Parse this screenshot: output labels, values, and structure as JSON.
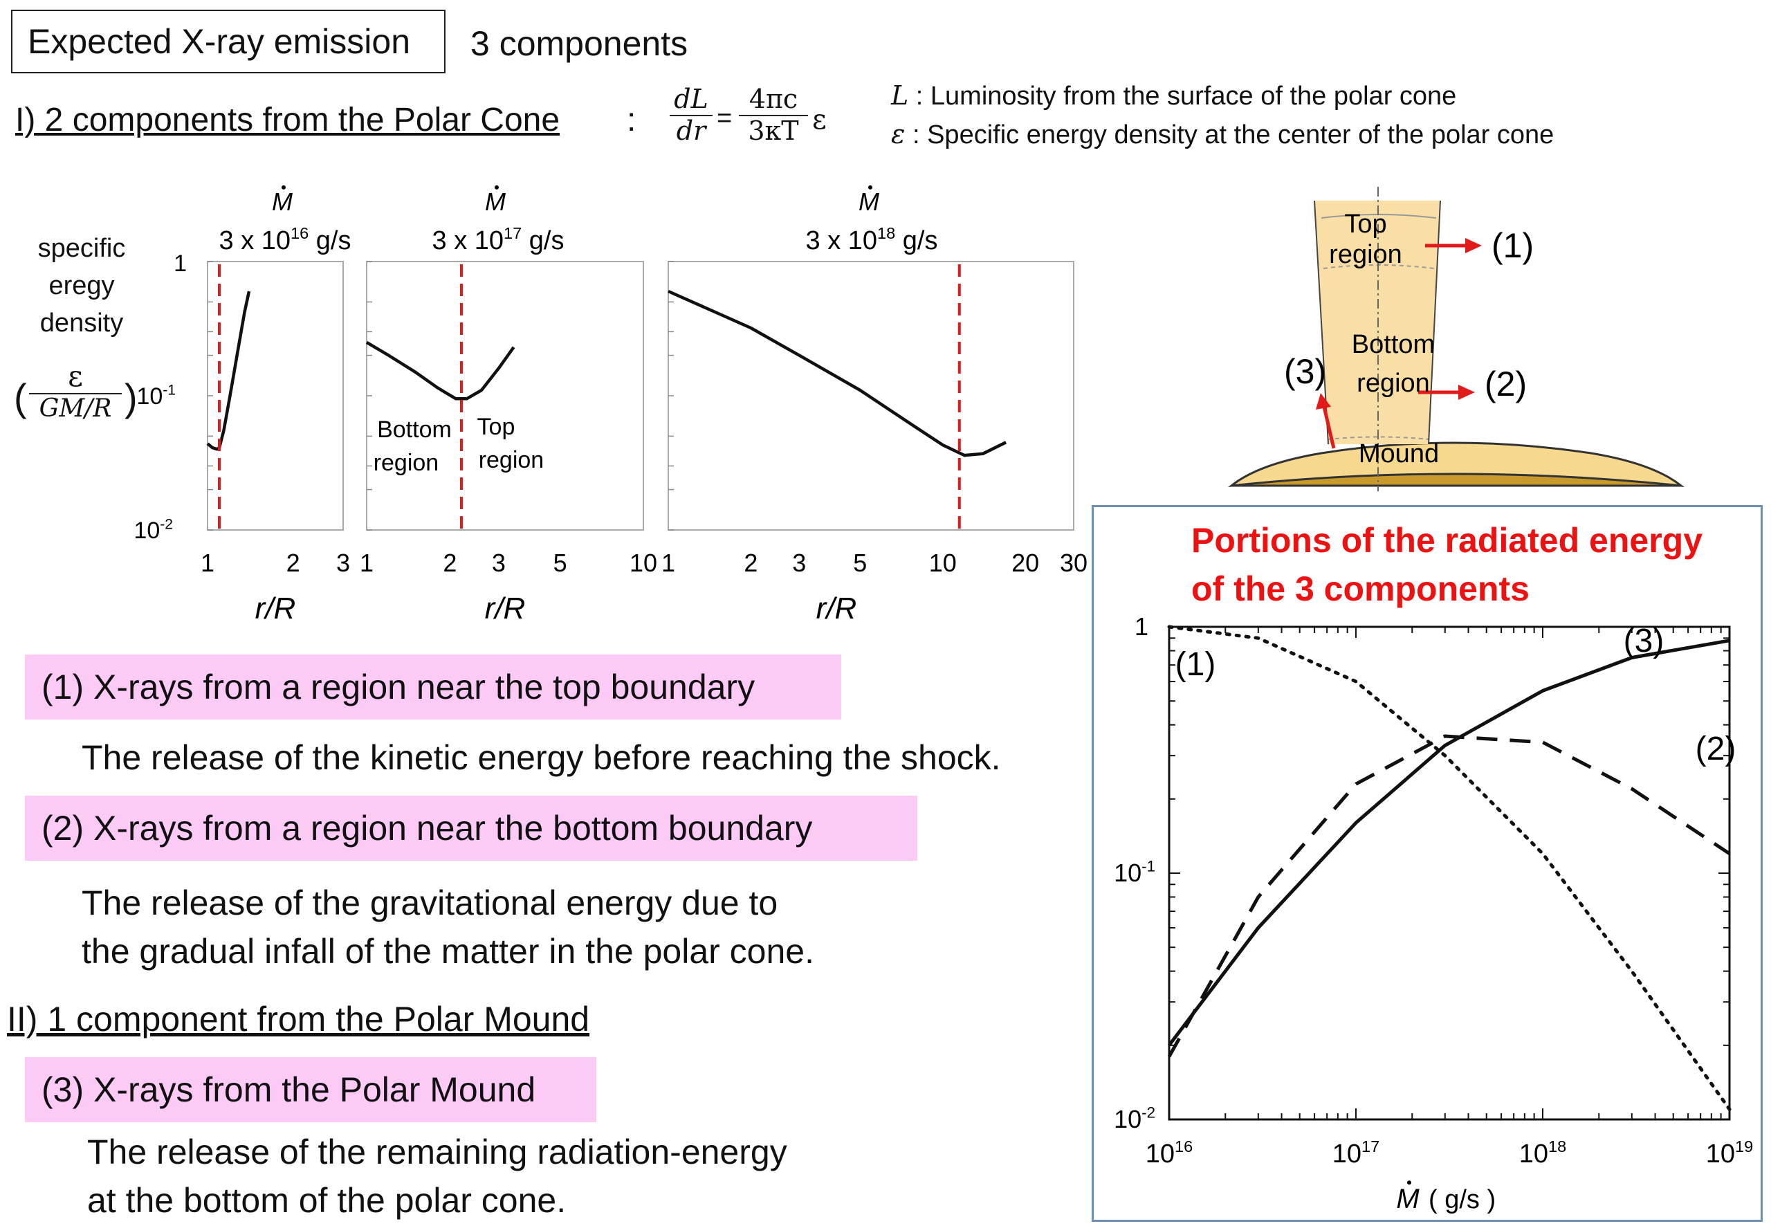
{
  "header": {
    "title_box": "Expected X-ray emission",
    "subtitle": "3 components"
  },
  "section1": {
    "heading": "I) 2 components from the Polar Cone",
    "heading_colon": ":",
    "equation": {
      "lhs_num": "dL",
      "lhs_den": "dr",
      "equals": "=",
      "rhs_num": "4πc",
      "rhs_den": "3κT",
      "rhs_factor": "ε"
    },
    "definitions": [
      {
        "symbol": "L",
        "text": ": Luminosity from the surface of the polar cone"
      },
      {
        "symbol": "ε",
        "text": ": Specific energy density at the center of the polar cone"
      }
    ]
  },
  "ylabel": {
    "lines": [
      "specific",
      "eregy",
      "density"
    ],
    "formula_num": "ε",
    "formula_den": "GM/R",
    "paren_open": "(",
    "paren_close": ")"
  },
  "cone_diagram": {
    "top_label_1": "Top",
    "top_label_2": "region",
    "bottom_label_1": "Bottom",
    "bottom_label_2": "region",
    "mound_label": "Mound",
    "arrow1_label": "(1)",
    "arrow2_label": "(2)",
    "arrow3_label": "(3)",
    "colors": {
      "cone_fill": "#f9dfa5",
      "mound_fill": "#f6d98f",
      "base_fill": "#c89a2c",
      "arrow": "#e21a1a"
    }
  },
  "items": {
    "item1_header": "(1) X-rays from a region near the top boundary",
    "item1_body": "The release of the kinetic energy before reaching the shock.",
    "item2_header": "(2) X-rays from a region near the bottom boundary",
    "item2_body_1": "The release of the gravitational energy due to",
    "item2_body_2": "the gradual infall of the matter in the polar cone.",
    "section2_heading": "II) 1 component from the Polar Mound",
    "item3_header": "(3) X-rays from the Polar Mound",
    "item3_body_1": "The release of the remaining radiation-energy",
    "item3_body_2": "at the bottom of the polar cone.",
    "highlight_color": "#fbcbf6"
  },
  "chart_data": [
    {
      "type": "line",
      "title": "3 x 10^16 g/s",
      "title_symbol": "Ṁ",
      "title_mantissa": "3 x 10",
      "title_exp": "16",
      "title_unit": " g/s",
      "xlabel": "r/R",
      "xscale": "log",
      "yscale": "log",
      "xlim": [
        1,
        3
      ],
      "ylim": [
        0.01,
        1
      ],
      "xticks": [
        "1",
        "2",
        "3"
      ],
      "yticks": [
        "1",
        "10^-1",
        "10^-2"
      ],
      "boundary_r": 1.1,
      "series": [
        {
          "x": [
            1.0,
            1.04,
            1.08,
            1.1,
            1.14,
            1.2,
            1.28,
            1.35,
            1.4
          ],
          "y": [
            0.044,
            0.041,
            0.04,
            0.041,
            0.055,
            0.1,
            0.22,
            0.42,
            0.6
          ]
        }
      ]
    },
    {
      "type": "line",
      "title": "3 x 10^17 g/s",
      "title_symbol": "Ṁ",
      "title_mantissa": "3 x 10",
      "title_exp": "17",
      "title_unit": " g/s",
      "xlabel": "r/R",
      "xscale": "log",
      "yscale": "log",
      "xlim": [
        1,
        10
      ],
      "ylim": [
        0.01,
        1
      ],
      "xticks": [
        "1",
        "2",
        "3",
        "5",
        "10"
      ],
      "region_labels": {
        "left_1": "Bottom",
        "left_2": "region",
        "right_1": "Top",
        "right_2": "region"
      },
      "boundary_r": 2.2,
      "series": [
        {
          "x": [
            1.0,
            1.2,
            1.5,
            1.8,
            2.1,
            2.3,
            2.6,
            3.0,
            3.4
          ],
          "y": [
            0.25,
            0.2,
            0.15,
            0.115,
            0.095,
            0.095,
            0.11,
            0.16,
            0.23
          ]
        }
      ]
    },
    {
      "type": "line",
      "title": "3 x 10^18 g/s",
      "title_symbol": "Ṁ",
      "title_mantissa": "3 x 10",
      "title_exp": "18",
      "title_unit": " g/s",
      "xlabel": "r/R",
      "xscale": "log",
      "yscale": "log",
      "xlim": [
        1,
        30
      ],
      "ylim": [
        0.01,
        1
      ],
      "xticks": [
        "1",
        "2",
        "3",
        "5",
        "10",
        "20",
        "30"
      ],
      "boundary_r": 11.5,
      "series": [
        {
          "x": [
            1,
            2,
            3,
            5,
            8,
            10,
            12,
            14,
            17
          ],
          "y": [
            0.6,
            0.32,
            0.2,
            0.11,
            0.058,
            0.043,
            0.036,
            0.037,
            0.045
          ]
        }
      ]
    },
    {
      "type": "line",
      "title": "Portions of the radiated energy of the 3 components",
      "xlabel_symbol": "Ṁ",
      "xlabel_unit": "( g/s )",
      "xscale": "log",
      "yscale": "log",
      "xlim": [
        1e+16,
        1e+19
      ],
      "ylim": [
        0.01,
        1
      ],
      "xticks": [
        "10^16",
        "10^17",
        "10^18",
        "10^19"
      ],
      "yticks": [
        "1",
        "10^-1",
        "10^-2"
      ],
      "series": [
        {
          "name": "(1)",
          "style": "dotted",
          "x": [
            1e+16,
            3e+16,
            1e+17,
            3e+17,
            1e+18,
            3e+18,
            1e+19
          ],
          "y": [
            1.0,
            0.9,
            0.6,
            0.3,
            0.12,
            0.04,
            0.011
          ]
        },
        {
          "name": "(2)",
          "style": "dashed",
          "x": [
            1e+16,
            3e+16,
            1e+17,
            3e+17,
            1e+18,
            3e+18,
            1e+19
          ],
          "y": [
            0.018,
            0.08,
            0.23,
            0.36,
            0.34,
            0.22,
            0.12
          ]
        },
        {
          "name": "(3)",
          "style": "solid",
          "x": [
            1e+16,
            3e+16,
            1e+17,
            3e+17,
            1e+18,
            3e+18,
            1e+19
          ],
          "y": [
            0.02,
            0.06,
            0.16,
            0.33,
            0.55,
            0.75,
            0.88
          ]
        }
      ]
    }
  ]
}
